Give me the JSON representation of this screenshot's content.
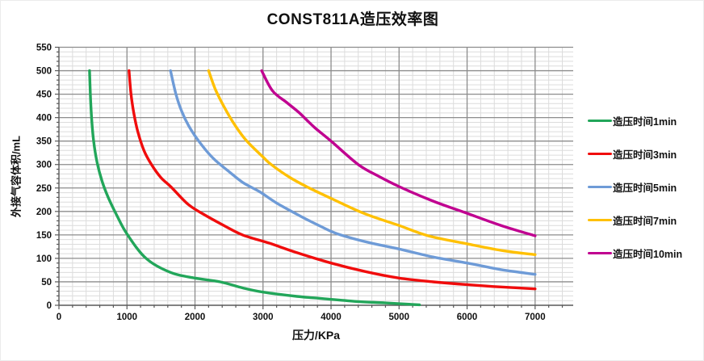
{
  "title": "CONST811A造压效率图",
  "axes": {
    "x": {
      "title": "压力/KPa",
      "min": 0,
      "max": 7560,
      "major_step": 1000,
      "minor_step": 200,
      "tick_labels": [
        "0",
        "1000",
        "2000",
        "3000",
        "4000",
        "5000",
        "6000",
        "7000"
      ],
      "tick_values": [
        0,
        1000,
        2000,
        3000,
        4000,
        5000,
        6000,
        7000
      ]
    },
    "y": {
      "title": "外接气容体积/mL",
      "min": 0,
      "max": 550,
      "major_step": 50,
      "minor_step": 10,
      "tick_labels": [
        "0",
        "50",
        "100",
        "150",
        "200",
        "250",
        "300",
        "350",
        "400",
        "450",
        "500",
        "550"
      ],
      "tick_values": [
        0,
        50,
        100,
        150,
        200,
        250,
        300,
        350,
        400,
        450,
        500,
        550
      ]
    }
  },
  "colors": {
    "major_grid": "#8c8c8c",
    "minor_grid": "#dcdcdc",
    "axis_line": "#595959",
    "text": "#111111"
  },
  "chart_data": {
    "type": "line",
    "title": "CONST811A造压效率图",
    "xlabel": "压力/KPa",
    "ylabel": "外接气容体积/mL",
    "xlim": [
      0,
      7560
    ],
    "ylim": [
      0,
      550
    ],
    "grid": "major+minor",
    "legend_position": "right",
    "series": [
      {
        "name": "造压时间1min",
        "color": "#22a65a",
        "points": [
          [
            450,
            500
          ],
          [
            462,
            450
          ],
          [
            480,
            400
          ],
          [
            510,
            350
          ],
          [
            560,
            305
          ],
          [
            640,
            262
          ],
          [
            730,
            228
          ],
          [
            850,
            192
          ],
          [
            1000,
            152
          ],
          [
            1280,
            100
          ],
          [
            1640,
            70
          ],
          [
            2000,
            58
          ],
          [
            2370,
            50
          ],
          [
            2700,
            37
          ],
          [
            3000,
            28
          ],
          [
            3500,
            19
          ],
          [
            3900,
            14
          ],
          [
            4400,
            8
          ],
          [
            4800,
            5
          ],
          [
            5300,
            1
          ]
        ]
      },
      {
        "name": "造压时间3min",
        "color": "#f00c0c",
        "points": [
          [
            1030,
            500
          ],
          [
            1060,
            450
          ],
          [
            1100,
            410
          ],
          [
            1160,
            370
          ],
          [
            1250,
            330
          ],
          [
            1360,
            300
          ],
          [
            1500,
            272
          ],
          [
            1650,
            252
          ],
          [
            1900,
            215
          ],
          [
            2150,
            192
          ],
          [
            2400,
            172
          ],
          [
            2700,
            150
          ],
          [
            3100,
            132
          ],
          [
            3500,
            112
          ],
          [
            4000,
            90
          ],
          [
            4500,
            72
          ],
          [
            5000,
            58
          ],
          [
            5500,
            50
          ],
          [
            6000,
            44
          ],
          [
            6500,
            39
          ],
          [
            7000,
            35
          ]
        ]
      },
      {
        "name": "造压时间5min",
        "color": "#6e9bd7",
        "points": [
          [
            1640,
            500
          ],
          [
            1720,
            450
          ],
          [
            1800,
            415
          ],
          [
            1910,
            382
          ],
          [
            2070,
            347
          ],
          [
            2270,
            313
          ],
          [
            2500,
            285
          ],
          [
            2700,
            262
          ],
          [
            2950,
            242
          ],
          [
            3200,
            218
          ],
          [
            3550,
            190
          ],
          [
            3850,
            168
          ],
          [
            4100,
            152
          ],
          [
            4550,
            134
          ],
          [
            5000,
            120
          ],
          [
            5500,
            103
          ],
          [
            6000,
            90
          ],
          [
            6500,
            76
          ],
          [
            7000,
            66
          ]
        ]
      },
      {
        "name": "造压时间7min",
        "color": "#ffc000",
        "points": [
          [
            2200,
            500
          ],
          [
            2300,
            460
          ],
          [
            2420,
            425
          ],
          [
            2560,
            390
          ],
          [
            2750,
            352
          ],
          [
            3000,
            316
          ],
          [
            3120,
            300
          ],
          [
            3400,
            272
          ],
          [
            3680,
            250
          ],
          [
            4000,
            228
          ],
          [
            4480,
            196
          ],
          [
            5000,
            170
          ],
          [
            5430,
            148
          ],
          [
            6000,
            131
          ],
          [
            6540,
            116
          ],
          [
            7000,
            108
          ]
        ]
      },
      {
        "name": "造压时间10min",
        "color": "#c00090",
        "points": [
          [
            2980,
            500
          ],
          [
            3140,
            457
          ],
          [
            3350,
            432
          ],
          [
            3535,
            410
          ],
          [
            3750,
            380
          ],
          [
            4000,
            350
          ],
          [
            4400,
            300
          ],
          [
            4700,
            275
          ],
          [
            5000,
            253
          ],
          [
            5500,
            222
          ],
          [
            6000,
            196
          ],
          [
            6500,
            170
          ],
          [
            7000,
            148
          ]
        ]
      }
    ]
  }
}
